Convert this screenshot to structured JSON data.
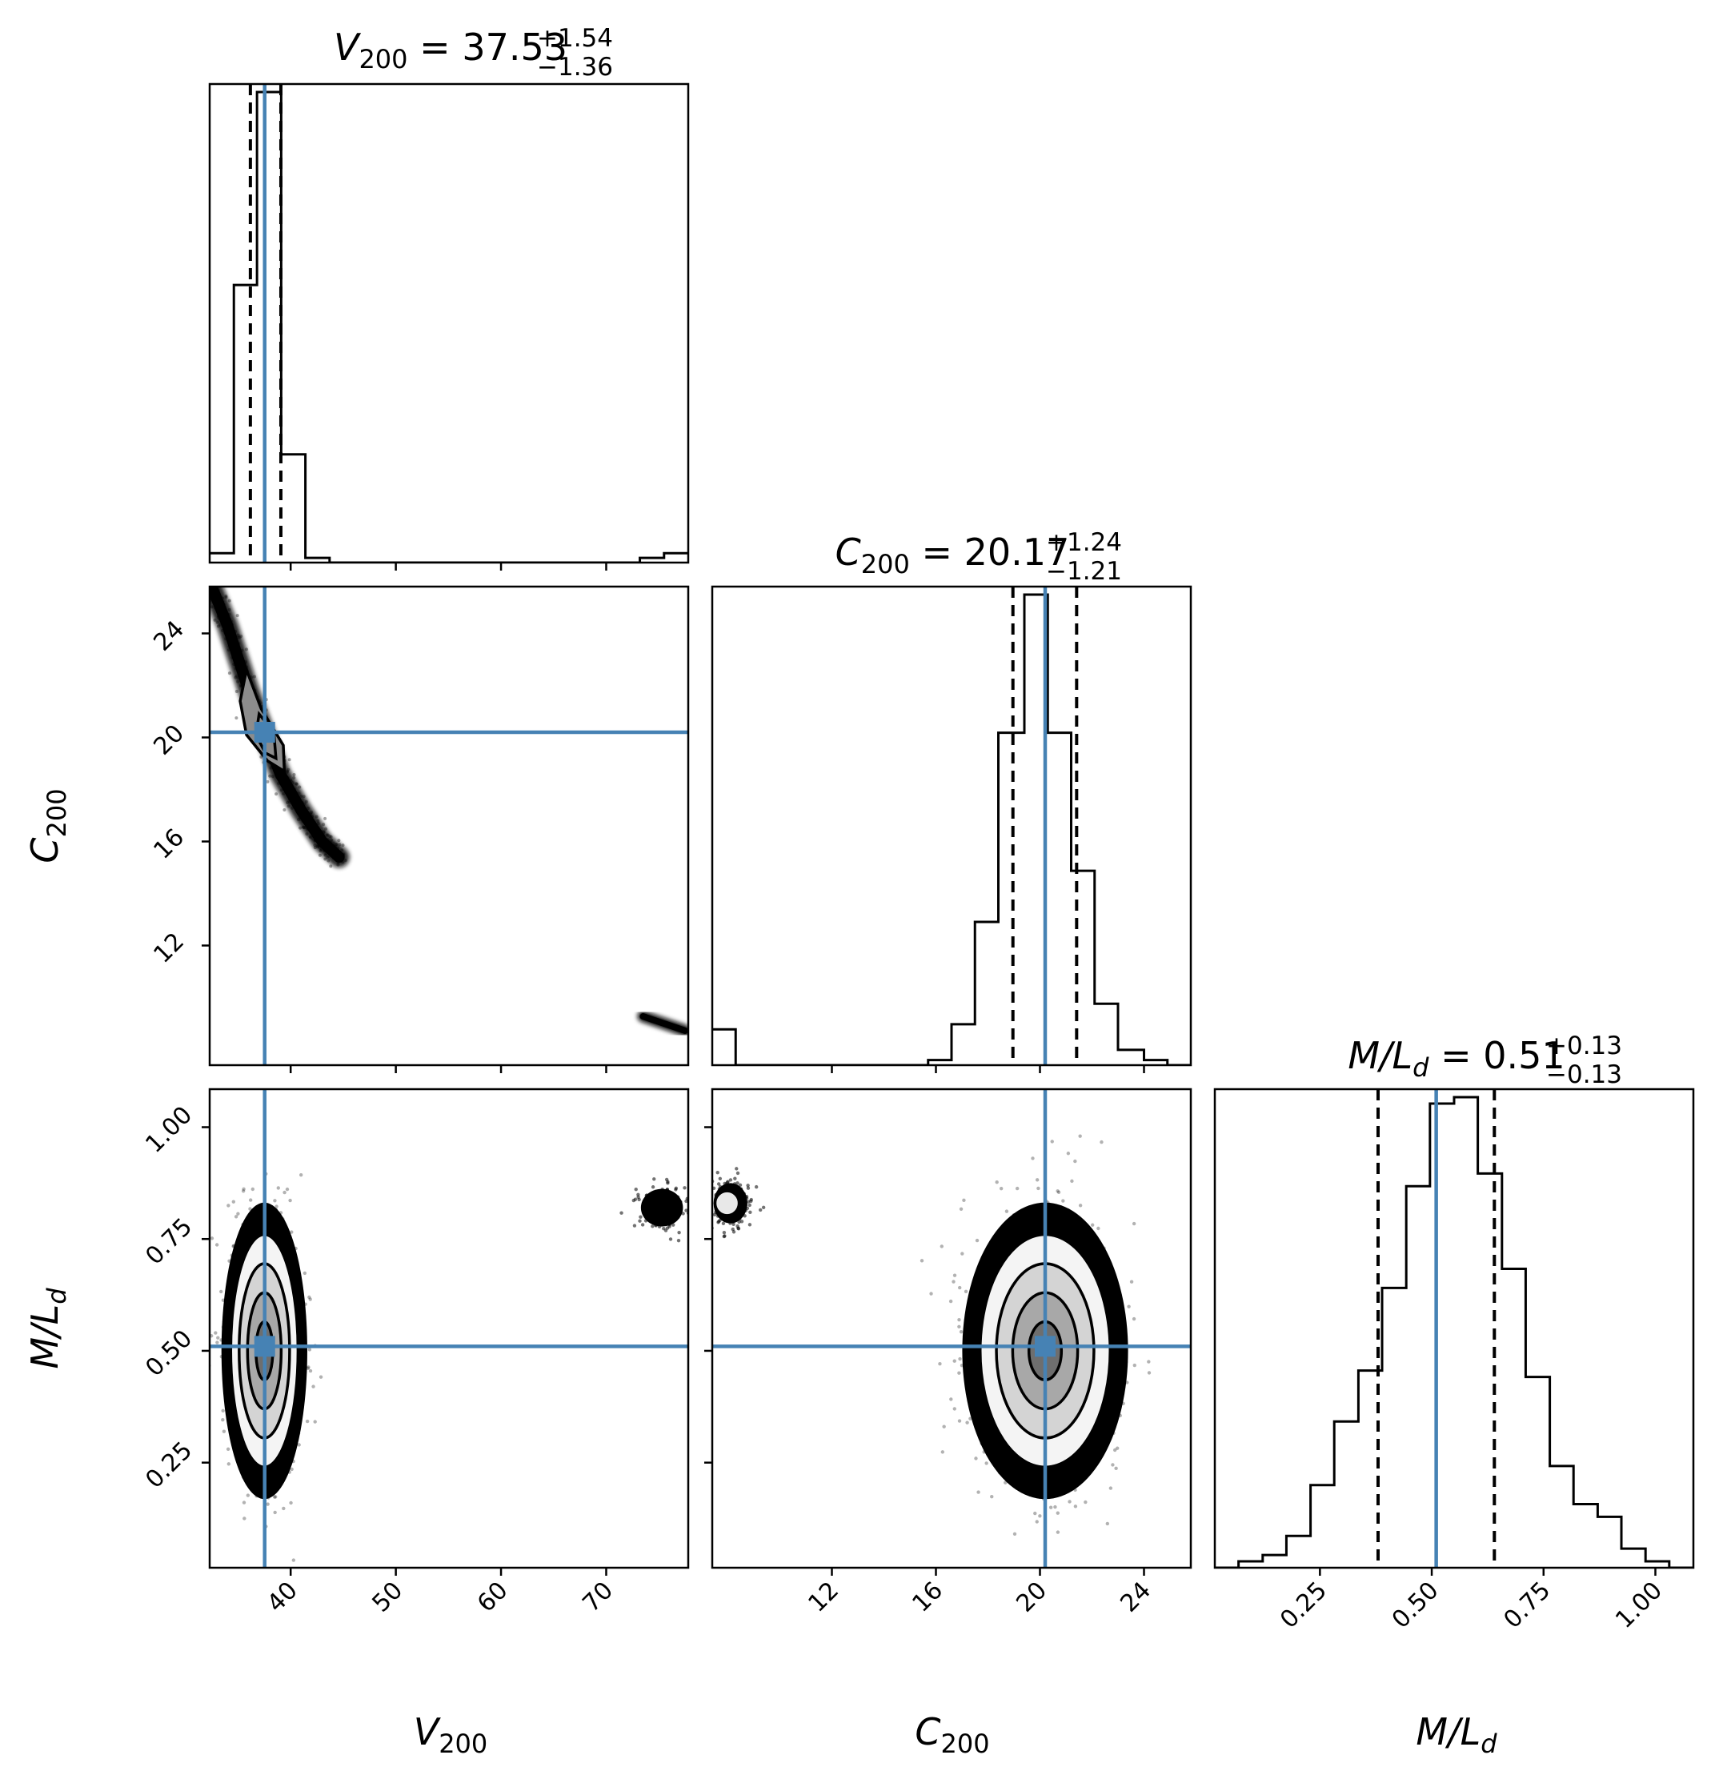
{
  "chart_data": {
    "type": "scatter",
    "parameters": [
      {
        "key": "V200",
        "label_base": "V",
        "label_sub": "200",
        "title_value": "37.53",
        "title_plus": "+1.54",
        "title_minus": "−1.36",
        "range": [
          32.3,
          77.8
        ],
        "ticks": [
          40,
          50,
          60,
          70
        ],
        "tick_labels": [
          "40",
          "50",
          "60",
          "70"
        ],
        "truth": 37.53,
        "quantiles": [
          36.17,
          39.07
        ],
        "hist": {
          "edges": [
            32.3,
            34.6,
            36.8,
            39.1,
            41.4,
            43.7,
            45.9,
            48.2,
            50.5,
            52.7,
            55.0,
            57.3,
            59.6,
            61.8,
            64.1,
            66.4,
            68.7,
            70.9,
            73.2,
            75.5,
            77.8
          ],
          "counts": [
            0.02,
            0.59,
            1.0,
            0.23,
            0.01,
            0,
            0,
            0,
            0,
            0,
            0,
            0,
            0,
            0,
            0,
            0,
            0,
            0,
            0.01,
            0.02
          ]
        }
      },
      {
        "key": "C200",
        "label_base": "C",
        "label_sub": "200",
        "title_value": "20.17",
        "title_plus": "+1.24",
        "title_minus": "−1.21",
        "range": [
          7.4,
          25.8
        ],
        "ticks": [
          12,
          16,
          20,
          24
        ],
        "tick_labels": [
          "12",
          "16",
          "20",
          "24"
        ],
        "truth": 20.2,
        "quantiles": [
          18.96,
          21.41
        ],
        "hist": {
          "edges": [
            7.4,
            8.3,
            9.2,
            10.2,
            11.1,
            12.0,
            12.9,
            13.8,
            14.8,
            15.7,
            16.6,
            17.5,
            18.4,
            19.4,
            20.3,
            21.2,
            22.1,
            23.0,
            24.0,
            24.9,
            25.8
          ],
          "counts": [
            0.07,
            0,
            0,
            0,
            0,
            0,
            0,
            0,
            0,
            0.01,
            0.08,
            0.28,
            0.65,
            0.92,
            0.65,
            0.38,
            0.12,
            0.03,
            0.01,
            0
          ]
        }
      },
      {
        "key": "ML",
        "label_base": "M/L",
        "label_sub": "d",
        "title_value": "0.51",
        "title_plus": "+0.13",
        "title_minus": "−0.13",
        "range": [
          0.015,
          1.085
        ],
        "ticks": [
          0.25,
          0.5,
          0.75,
          1.0
        ],
        "tick_labels": [
          "0.25",
          "0.50",
          "0.75",
          "1.00"
        ],
        "truth": 0.51,
        "quantiles": [
          0.38,
          0.64
        ],
        "hist": {
          "edges": [
            0.015,
            0.068,
            0.122,
            0.175,
            0.229,
            0.282,
            0.336,
            0.389,
            0.443,
            0.496,
            0.55,
            0.603,
            0.657,
            0.71,
            0.764,
            0.817,
            0.871,
            0.924,
            0.978,
            1.031,
            1.085
          ],
          "counts": [
            0.0,
            0.01,
            0.02,
            0.05,
            0.13,
            0.23,
            0.31,
            0.44,
            0.6,
            0.73,
            0.74,
            0.62,
            0.47,
            0.3,
            0.16,
            0.1,
            0.08,
            0.03,
            0.01,
            0.0
          ]
        }
      }
    ],
    "panels_2d": [
      {
        "x": "V200",
        "y": "C200",
        "mode": "ridge",
        "points": [
          [
            32.3,
            26.0
          ],
          [
            34.0,
            24.3
          ],
          [
            36.0,
            21.8
          ],
          [
            37.5,
            20.2
          ],
          [
            39.0,
            18.6
          ],
          [
            41.0,
            17.2
          ],
          [
            43.0,
            16.0
          ],
          [
            44.6,
            15.4
          ]
        ],
        "outlier": {
          "x": 75.5,
          "y": 9.0,
          "dx": 4.0,
          "dy": 0.55
        },
        "contours": [
          [
            [
              35.8,
              22.6
            ],
            [
              37.2,
              21.1
            ],
            [
              39.3,
              19.7
            ],
            [
              39.4,
              18.7
            ],
            [
              37.8,
              19.1
            ],
            [
              35.8,
              20.1
            ],
            [
              35.2,
              21.4
            ]
          ],
          [
            [
              37.0,
              20.9
            ],
            [
              38.4,
              20.2
            ],
            [
              38.6,
              19.2
            ],
            [
              37.6,
              19.4
            ],
            [
              36.7,
              20.1
            ]
          ]
        ]
      },
      {
        "x": "V200",
        "y": "ML",
        "mode": "ellipse",
        "center": [
          37.5,
          0.5
        ],
        "sigma": [
          1.6,
          0.13
        ],
        "outlier": {
          "x": 75.3,
          "y": 0.82,
          "rx": 2.0,
          "ry": 0.042
        }
      },
      {
        "x": "C200",
        "y": "ML",
        "mode": "ellipse",
        "center": [
          20.2,
          0.5
        ],
        "sigma": [
          1.25,
          0.13
        ],
        "outlier": {
          "x": 8.1,
          "y": 0.83,
          "rx": 0.65,
          "ry": 0.045
        }
      }
    ]
  }
}
